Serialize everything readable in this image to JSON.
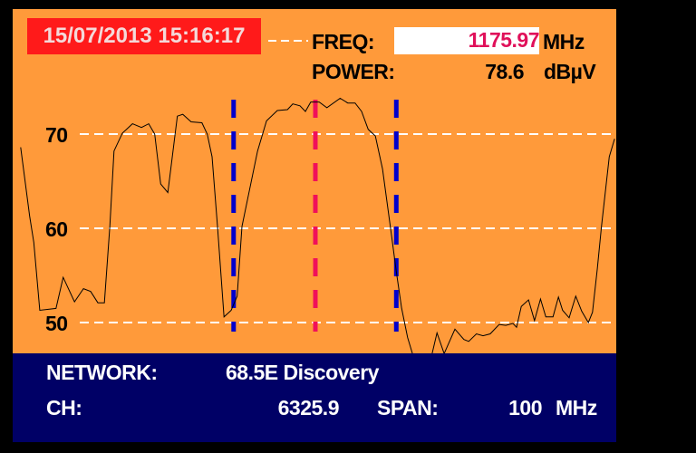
{
  "header": {
    "datetime": "15/07/2013 15:16:17",
    "freq_label": "FREQ:",
    "freq_value": "1175.97",
    "freq_unit": "MHz",
    "power_label": "POWER:",
    "power_value": "78.6",
    "power_unit": "dBµV"
  },
  "footer": {
    "network_label": "NETWORK:",
    "network_value": "68.5E Discovery",
    "ch_label": "CH:",
    "ch_value": "6325.9",
    "span_label": "SPAN:",
    "span_value": "100",
    "span_unit": "MHz"
  },
  "colors": {
    "plot_bg": "#FF9A3A",
    "info_bg": "#000066",
    "date_bg": "#FF1A1A",
    "freq_value": "#E0105A",
    "center_marker": "#F0105A",
    "band_marker": "#0000CC",
    "trace": "#000000",
    "grid": "#FFFFFF"
  },
  "chart_data": {
    "type": "line",
    "title": "",
    "xlabel": "",
    "ylabel": "",
    "x_unit": "MHz",
    "y_unit": "dBµV",
    "xlim": [
      1125.97,
      1225.97
    ],
    "yticks": [
      70,
      60,
      50
    ],
    "ytick_labels": [
      "70",
      "60",
      "50"
    ],
    "grid": "horizontal dashed",
    "markers": {
      "center": 1175.97,
      "band_low": 1162.3,
      "band_high": 1189.5
    },
    "series": [
      {
        "x": [
          1126.7,
          1128.2,
          1128.9,
          1129.9,
          1132.6,
          1133.8,
          1135.7,
          1137.2,
          1138.4,
          1139.6,
          1140.7,
          1141.6,
          1142.3,
          1143.7,
          1145.4,
          1146.9,
          1148.1,
          1149.1,
          1150.1,
          1151.3,
          1152.9,
          1153.8,
          1155.2,
          1157.0,
          1157.9,
          1158.7,
          1159.6,
          1160.7,
          1161.9,
          1162.9,
          1163.7,
          1166.3,
          1167.8,
          1169.6,
          1171.3,
          1172.2,
          1173.4,
          1174.3,
          1175.2,
          1176.6,
          1177.9,
          1180.1,
          1181.4,
          1182.6,
          1183.7,
          1184.8,
          1186.0,
          1187.2,
          1188.5,
          1189.5,
          1190.4,
          1191.4,
          1192.2,
          1194.9,
          1196.3,
          1197.5,
          1199.3,
          1200.8,
          1201.6,
          1202.9,
          1204.0,
          1205.2,
          1206.7,
          1207.8,
          1209.0,
          1209.6,
          1210.4,
          1211.6,
          1212.6,
          1213.6,
          1214.5,
          1215.7,
          1216.6,
          1217.3,
          1218.4,
          1219.5,
          1220.5,
          1221.6,
          1222.3,
          1223.1,
          1223.8,
          1225.1,
          1226.0
        ],
        "y": [
          68.6,
          61.3,
          58.5,
          51.3,
          51.5,
          54.8,
          52.2,
          53.6,
          53.3,
          52.1,
          52.1,
          60.2,
          68.2,
          70.1,
          71.1,
          70.7,
          71.1,
          70.0,
          64.7,
          63.8,
          71.9,
          72.1,
          71.3,
          71.2,
          70.0,
          67.6,
          60.2,
          50.6,
          51.3,
          52.8,
          60.2,
          68.2,
          71.4,
          72.5,
          72.6,
          73.2,
          73.0,
          72.4,
          73.4,
          73.4,
          72.8,
          73.8,
          73.3,
          73.3,
          72.4,
          70.5,
          69.8,
          66.3,
          60.2,
          55.4,
          51.5,
          48.4,
          46.7,
          45.1,
          48.9,
          46.7,
          49.3,
          48.2,
          48.0,
          48.8,
          48.6,
          48.8,
          49.8,
          49.7,
          49.9,
          49.5,
          51.7,
          52.4,
          50.2,
          52.5,
          50.6,
          50.6,
          52.7,
          51.3,
          50.5,
          52.8,
          51.2,
          50.0,
          51.1,
          55.7,
          60.2,
          67.6,
          69.5
        ]
      }
    ]
  }
}
